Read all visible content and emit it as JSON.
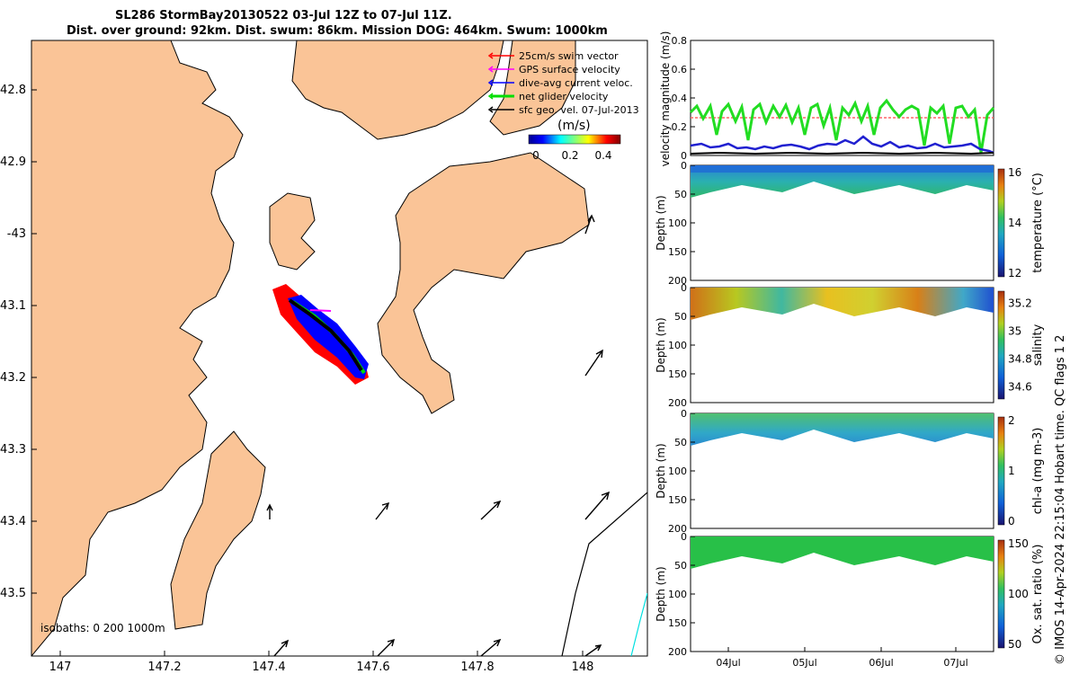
{
  "title": {
    "line1": "SL286 StormBay20130522 03-Jul 12Z to 07-Jul 11Z.",
    "line2": "Dist. over ground: 92km. Dist. swum: 86km. Mission DOG: 464km. Swum: 1000km"
  },
  "map": {
    "lat_ticks": [
      "42.8",
      "42.9",
      "-43",
      "43.1",
      "43.2",
      "43.3",
      "43.4",
      "43.5"
    ],
    "lon_ticks": [
      "147",
      "147.2",
      "147.4",
      "147.6",
      "147.8",
      "148"
    ],
    "isobaths_label": "isobaths: 0   200  1000m",
    "legend": [
      {
        "label": "25cm/s swim vector",
        "color": "#ff0000"
      },
      {
        "label": "GPS surface velocity",
        "color": "#ff00ff"
      },
      {
        "label": "dive-avg current veloc.",
        "color": "#0000ff"
      },
      {
        "label": "net glider velocity",
        "color": "#00dd00"
      },
      {
        "label": "sfc geo. vel. 07-Jul-2013",
        "color": "#000000"
      }
    ],
    "colorbar": {
      "unit": "(m/s)",
      "ticks": [
        "0",
        "0.2",
        "0.4"
      ]
    }
  },
  "velocity_panel": {
    "ylabel": "velocity magnitude (m/s)",
    "yticks": [
      "0",
      "0.2",
      "0.4",
      "0.6",
      "0.8"
    ],
    "ylim": [
      0,
      0.8
    ]
  },
  "sections": [
    {
      "label": "temperature (°C)",
      "cb_ticks": [
        "16",
        "14",
        "12"
      ]
    },
    {
      "label": "salinity",
      "cb_ticks": [
        "35.2",
        "35",
        "34.8",
        "34.6"
      ]
    },
    {
      "label": "chl-a (mg m-3)",
      "cb_ticks": [
        "2",
        "1",
        "0"
      ]
    },
    {
      "label": "Ox. sat. ratio (%)",
      "cb_ticks": [
        "150",
        "100",
        "50"
      ]
    }
  ],
  "depth_axis": {
    "ylabel": "Depth (m)",
    "ticks": [
      "0",
      "50",
      "100",
      "150",
      "200"
    ]
  },
  "time_ticks": [
    "04Jul",
    "05Jul",
    "06Jul",
    "07Jul"
  ],
  "credit": "© IMOS 14-Apr-2024 22:15:04 Hobart time. QC flags 1  2"
}
